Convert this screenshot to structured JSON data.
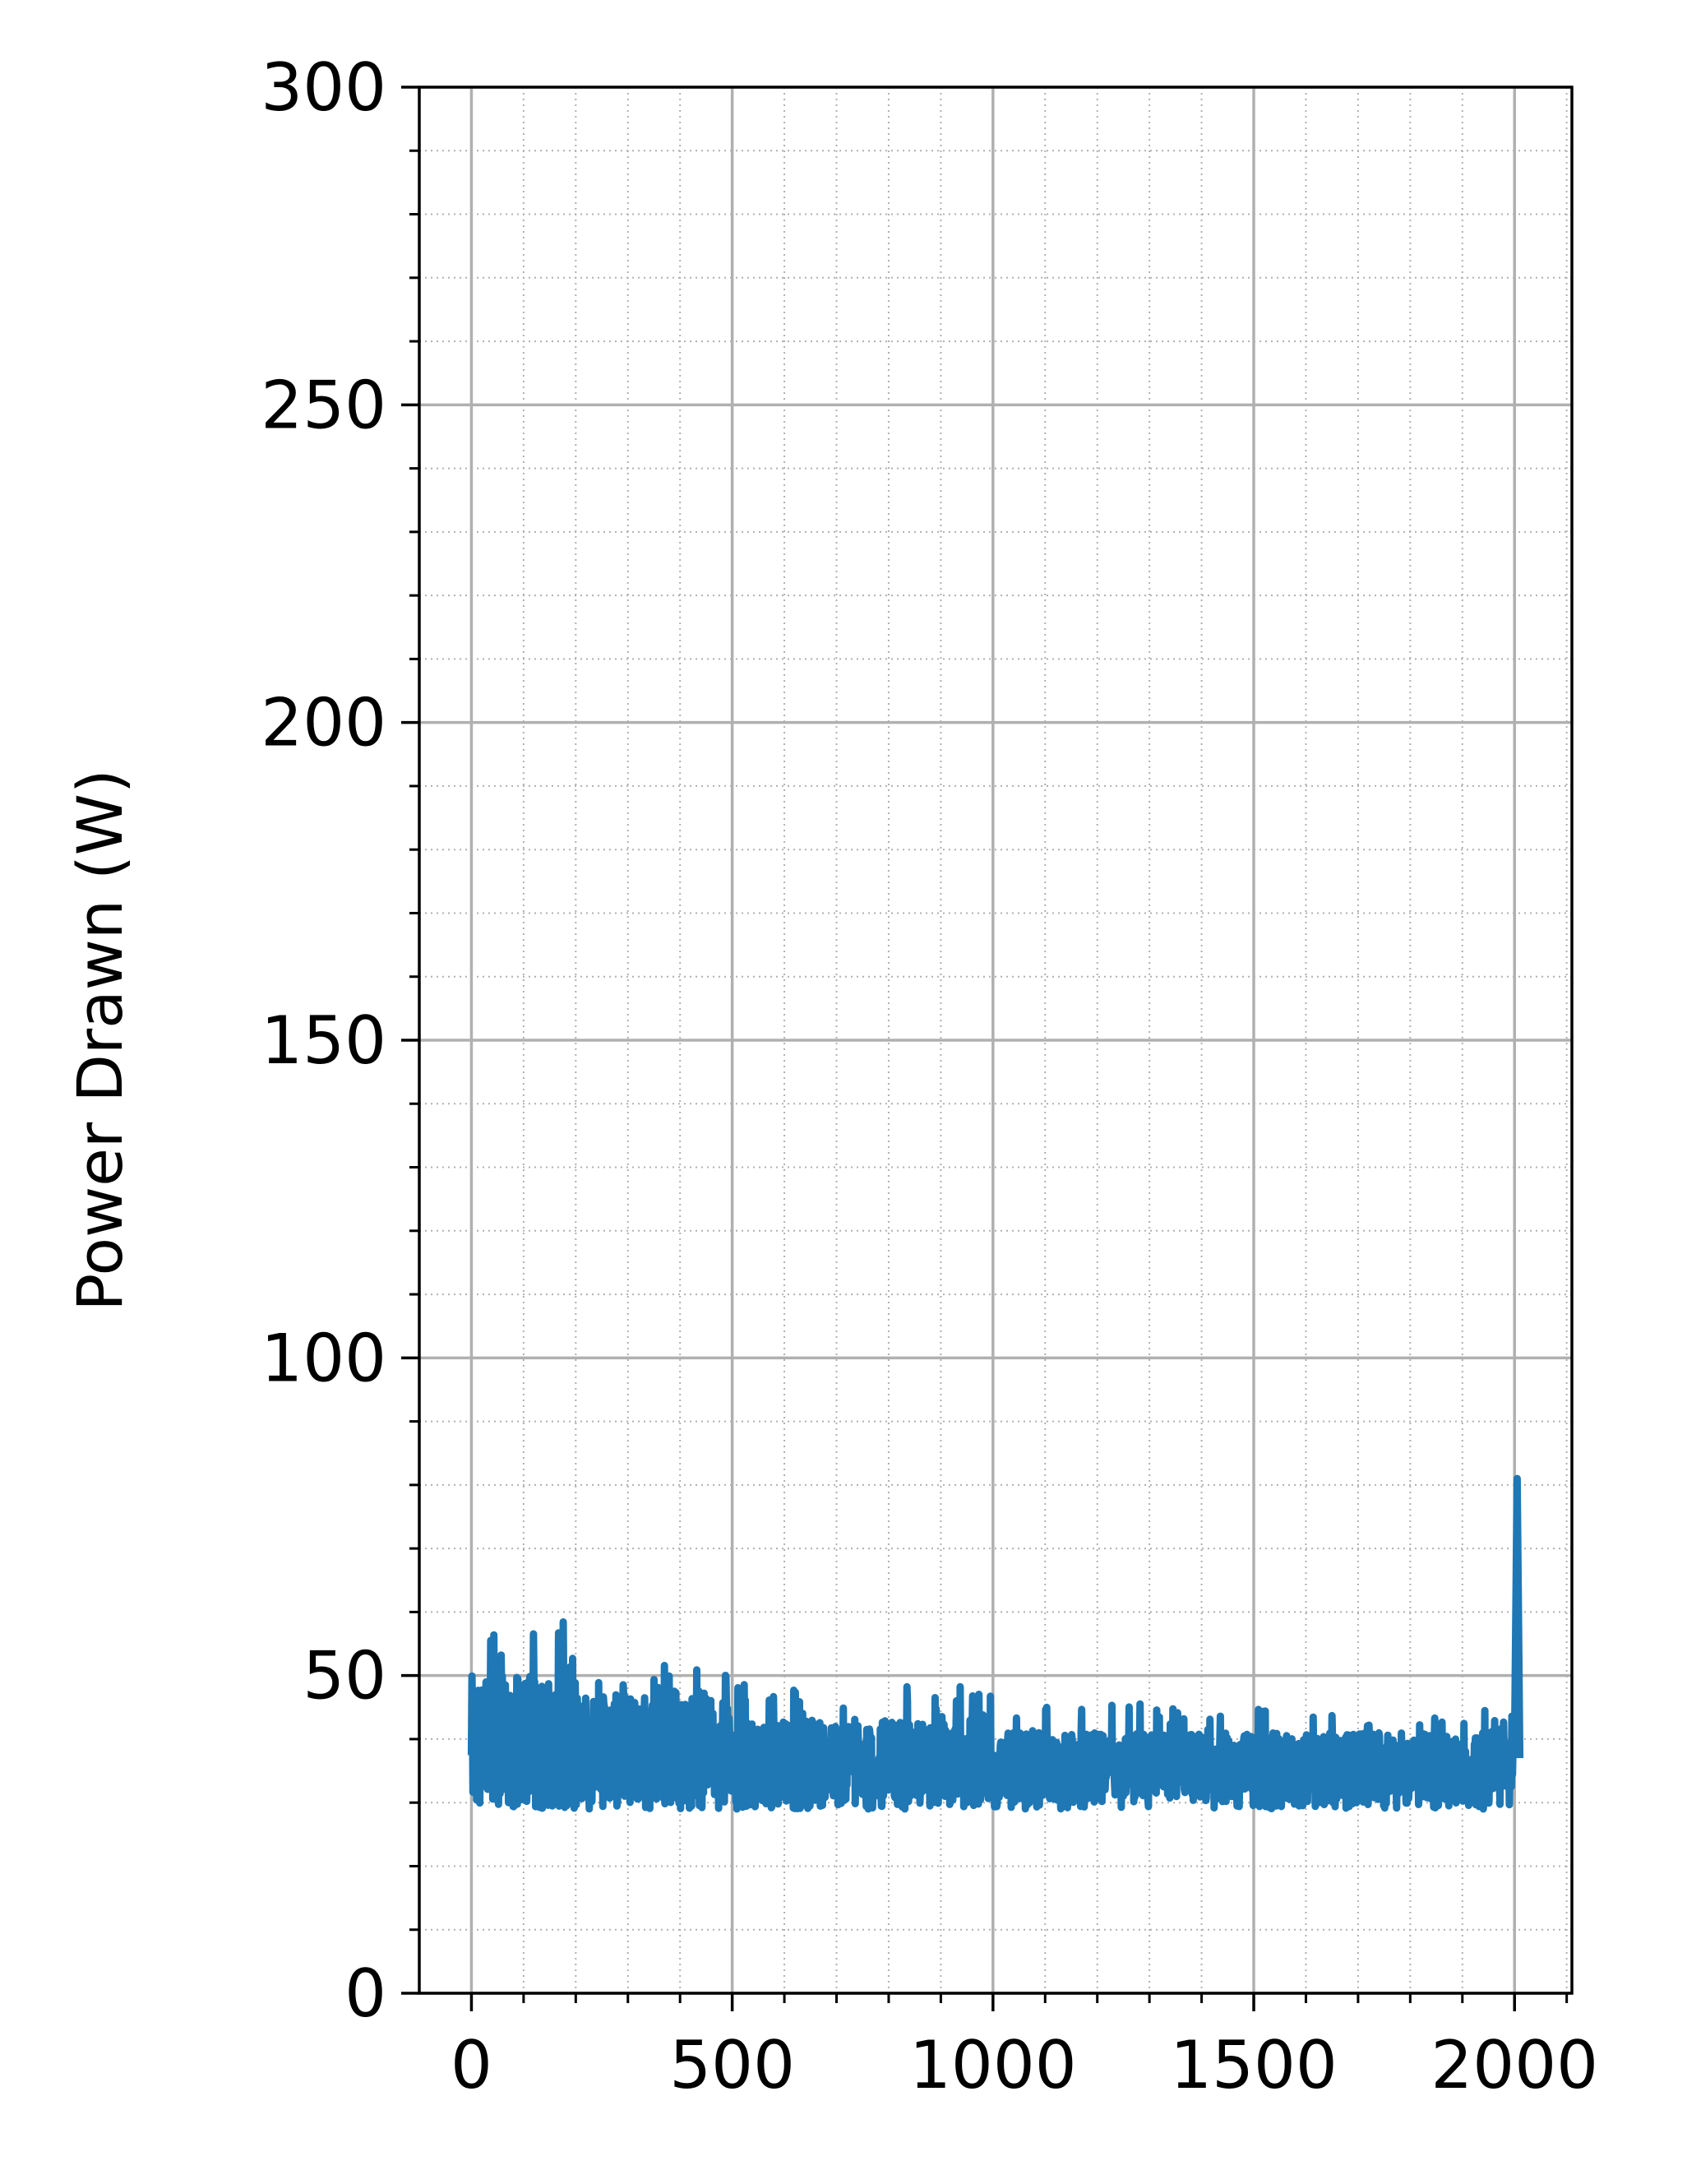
{
  "chart_data": {
    "type": "line",
    "title": "",
    "xlabel": "",
    "ylabel": "Power Drawn (W)",
    "xlim": [
      -100,
      2110
    ],
    "ylim": [
      0,
      300
    ],
    "x_ticks": [
      0,
      500,
      1000,
      1500,
      2000
    ],
    "x_tick_labels": [
      "0",
      "500",
      "1000",
      "1500",
      "2000"
    ],
    "y_ticks": [
      0,
      50,
      100,
      150,
      200,
      250,
      300
    ],
    "y_tick_labels": [
      "0",
      "50",
      "100",
      "150",
      "200",
      "250",
      "300"
    ],
    "x_minor_step": 100,
    "y_minor_step": 10,
    "grid": {
      "major": true,
      "minor": true
    },
    "colors": {
      "line": "#1f77b4",
      "major_grid": "#b0b0b0",
      "minor_grid": "#b0b0b0",
      "axes": "#000000"
    },
    "series": [
      {
        "x_start": 0,
        "x_step": 1,
        "point_count": 2010,
        "typical_range_by_x": [
          {
            "x_from": 0,
            "x_to": 200,
            "low": 29,
            "high": 50,
            "max": 60
          },
          {
            "x_from": 200,
            "x_to": 500,
            "low": 29,
            "high": 47,
            "max": 52
          },
          {
            "x_from": 500,
            "x_to": 1000,
            "low": 29,
            "high": 43,
            "max": 49
          },
          {
            "x_from": 1000,
            "x_to": 1500,
            "low": 29,
            "high": 41,
            "max": 46
          },
          {
            "x_from": 1500,
            "x_to": 2000,
            "low": 29,
            "high": 41,
            "max": 45
          }
        ],
        "end_points": [
          {
            "x": 2000,
            "y": 38
          },
          {
            "x": 2005,
            "y": 81
          },
          {
            "x": 2010,
            "y": 37
          }
        ]
      }
    ]
  }
}
